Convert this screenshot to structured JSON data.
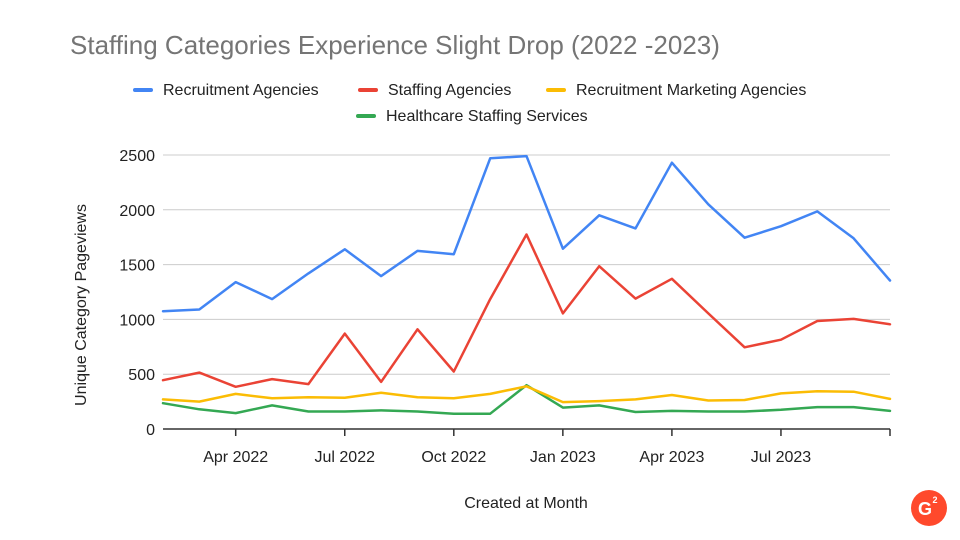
{
  "colors": {
    "recruitment_agencies": "#4285F4",
    "staffing_agencies": "#EA4335",
    "recruitment_marketing_agencies": "#FBBC04",
    "healthcare_staffing_services": "#34A853",
    "logo": "#FF492C"
  },
  "logo": {
    "letter": "G",
    "superscript": "2"
  },
  "chart_data": {
    "type": "line",
    "title": "Staffing Categories Experience Slight Drop (2022 -2023)",
    "xlabel": "Created at Month",
    "ylabel": "Unique Category Pageviews",
    "ylim": [
      0,
      2500
    ],
    "yticks": [
      0,
      500,
      1000,
      1500,
      2000,
      2500
    ],
    "grid": true,
    "legend_position": "top",
    "x": [
      "2022-02",
      "2022-03",
      "2022-04",
      "2022-05",
      "2022-06",
      "2022-07",
      "2022-08",
      "2022-09",
      "2022-10",
      "2022-11",
      "2022-12",
      "2023-01",
      "2023-02",
      "2023-03",
      "2023-04",
      "2023-05",
      "2023-06",
      "2023-07",
      "2023-08",
      "2023-09",
      "2023-10"
    ],
    "xticks": [
      {
        "index": 2,
        "label": "Apr 2022"
      },
      {
        "index": 5,
        "label": "Jul 2022"
      },
      {
        "index": 8,
        "label": "Oct 2022"
      },
      {
        "index": 11,
        "label": "Jan 2023"
      },
      {
        "index": 14,
        "label": "Apr 2023"
      },
      {
        "index": 17,
        "label": "Jul 2023"
      }
    ],
    "series": [
      {
        "name": "Recruitment Agencies",
        "color_key": "recruitment_agencies",
        "values": [
          1075,
          1090,
          1340,
          1185,
          1420,
          1640,
          1395,
          1625,
          1595,
          2470,
          2490,
          1645,
          1950,
          1830,
          2430,
          2050,
          1745,
          1850,
          1985,
          1740,
          1355
        ]
      },
      {
        "name": "Staffing Agencies",
        "color_key": "staffing_agencies",
        "values": [
          445,
          515,
          385,
          455,
          410,
          870,
          430,
          910,
          525,
          1185,
          1775,
          1055,
          1485,
          1190,
          1370,
          1055,
          745,
          815,
          985,
          1005,
          955
        ]
      },
      {
        "name": "Recruitment Marketing Agencies",
        "color_key": "recruitment_marketing_agencies",
        "values": [
          270,
          250,
          320,
          280,
          290,
          285,
          330,
          290,
          280,
          320,
          390,
          245,
          255,
          270,
          310,
          260,
          265,
          325,
          345,
          340,
          275
        ]
      },
      {
        "name": "Healthcare Staffing Services",
        "color_key": "healthcare_staffing_services",
        "values": [
          235,
          180,
          145,
          215,
          160,
          160,
          170,
          160,
          140,
          140,
          400,
          195,
          215,
          155,
          165,
          160,
          160,
          175,
          200,
          200,
          165
        ]
      }
    ]
  }
}
